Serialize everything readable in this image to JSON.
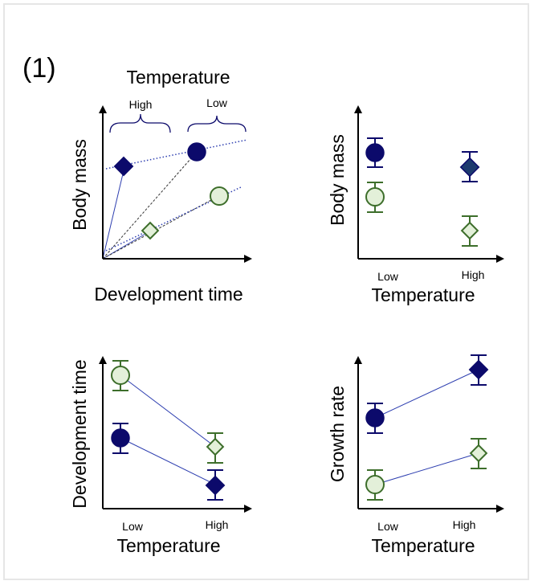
{
  "figure_label": "(1)",
  "colors": {
    "dark_fill": "#0c0a6b",
    "dark_stroke": "#0c0a6b",
    "light_fill": "#e3f0d9",
    "light_stroke": "#3d6e2b",
    "axis": "#000000",
    "guide_line": "#2e3fb0"
  },
  "panel_a": {
    "header": "Temperature",
    "group_high": "High",
    "group_low": "Low",
    "y_label": "Body mass",
    "x_label": "Development time"
  },
  "panel_b": {
    "y_label": "Body mass",
    "x_label": "Temperature",
    "tick_low": "Low",
    "tick_high": "High"
  },
  "panel_c": {
    "y_label": "Development time",
    "x_label": "Temperature",
    "tick_low": "Low",
    "tick_high": "High"
  },
  "panel_d": {
    "y_label": "Growth rate",
    "x_label": "Temperature",
    "tick_low": "Low",
    "tick_high": "High"
  }
}
